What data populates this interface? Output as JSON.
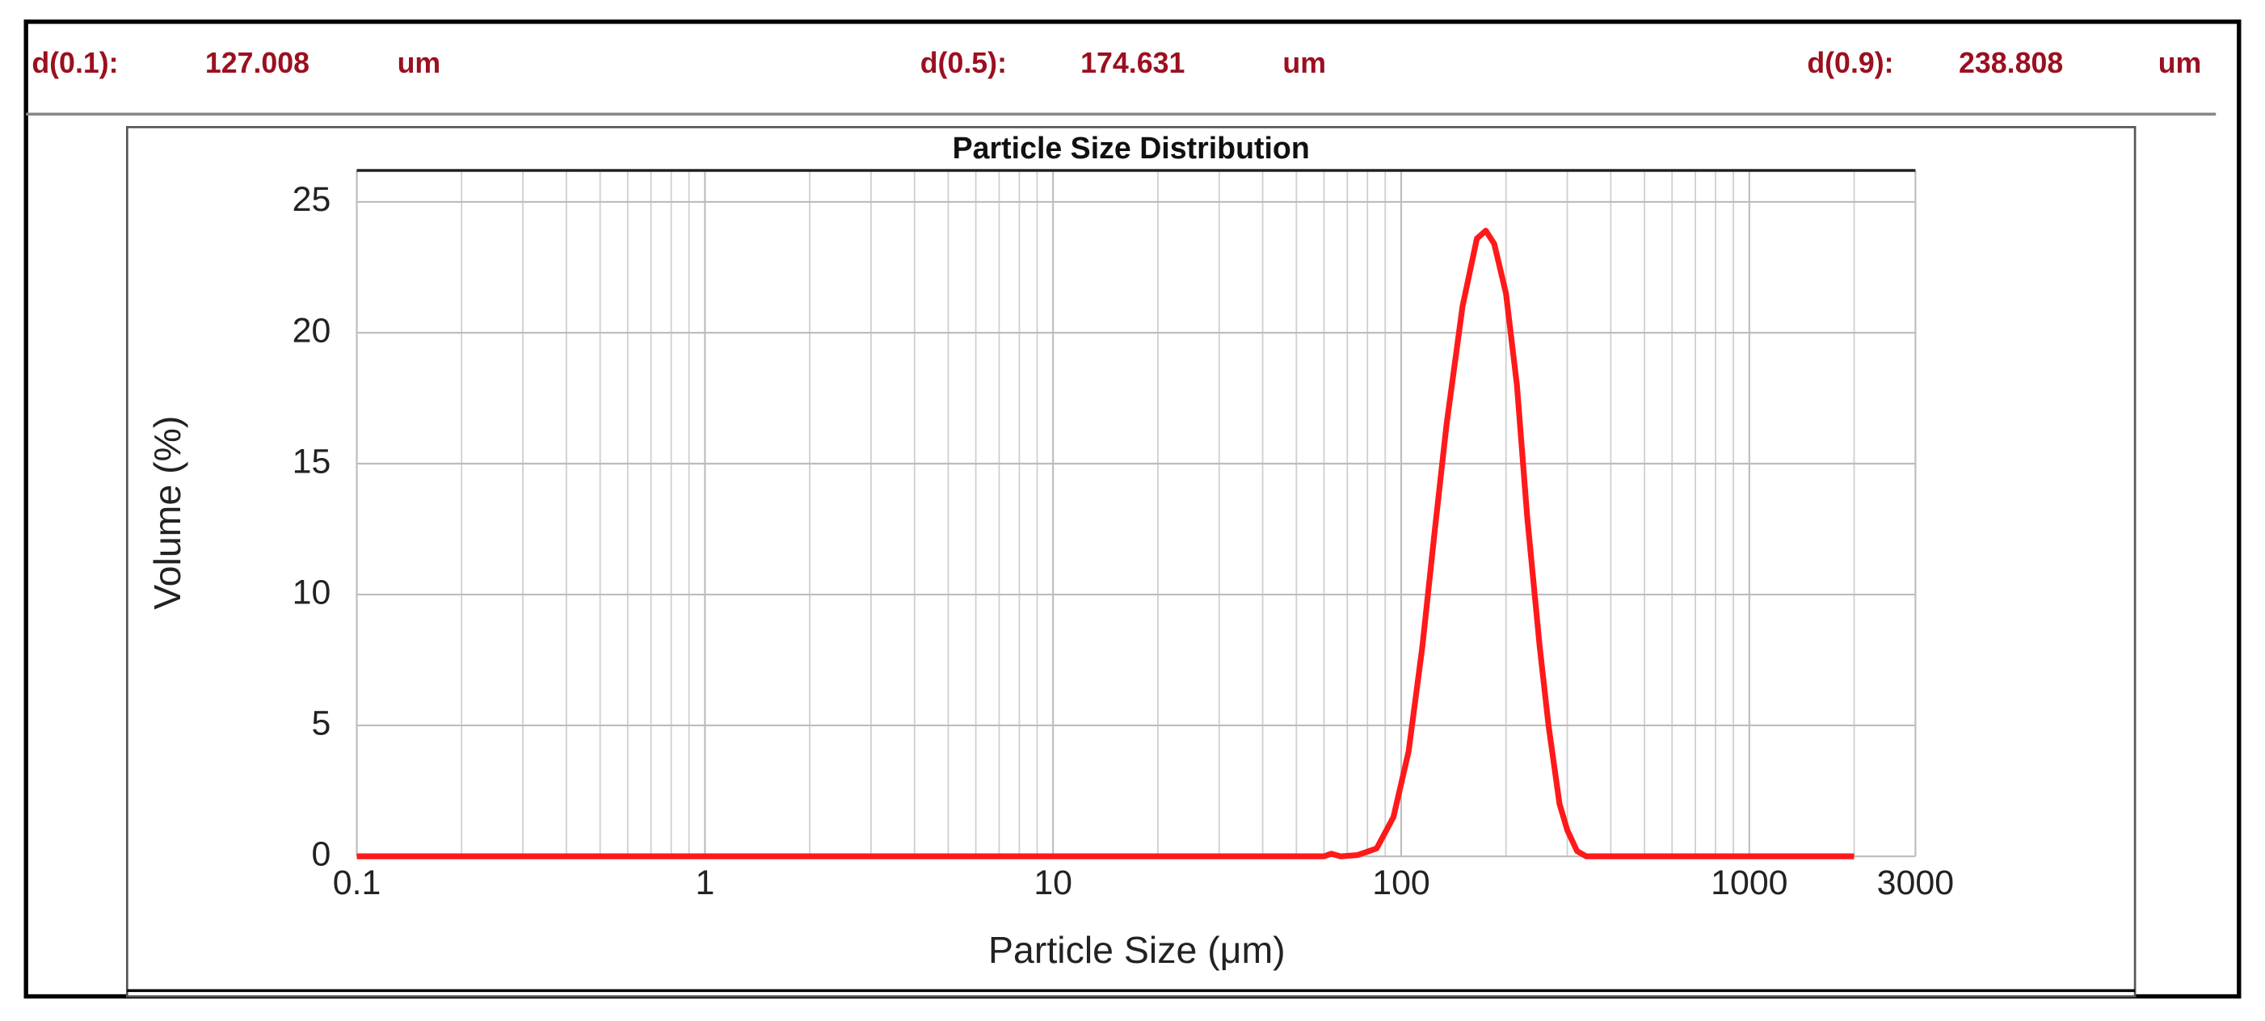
{
  "header": {
    "items": [
      {
        "label": "d(0.1):",
        "value": 127.008,
        "unit": "um"
      },
      {
        "label": "d(0.5):",
        "value": 174.631,
        "unit": "um"
      },
      {
        "label": "d(0.9):",
        "value": 238.808,
        "unit": "um"
      }
    ]
  },
  "chart_data": {
    "type": "line",
    "title": "Particle Size Distribution",
    "x_label": "Particle Size (μm)",
    "y_label": "Volume (%)",
    "xscale": "log",
    "grid": true,
    "color": "#ff1a1a",
    "xlim": [
      0.1,
      3000
    ],
    "xticks": [
      0.1,
      1,
      10,
      100,
      1000,
      3000
    ],
    "xgrid": [
      0.2,
      0.3,
      0.4,
      0.5,
      0.6,
      0.7,
      0.8,
      0.9,
      2,
      3,
      4,
      5,
      6,
      7,
      8,
      9,
      20,
      30,
      40,
      50,
      60,
      70,
      80,
      90,
      200,
      300,
      400,
      500,
      600,
      700,
      800,
      900,
      2000
    ],
    "ylim": [
      0,
      26.2
    ],
    "yticks": [
      0,
      5,
      10,
      15,
      20,
      25
    ],
    "x": [
      0.1,
      60,
      63,
      67,
      75,
      85,
      95,
      105,
      115,
      125,
      135,
      150,
      165,
      175,
      185,
      200,
      215,
      230,
      250,
      265,
      285,
      300,
      320,
      340,
      2000
    ],
    "values": [
      0,
      0,
      0.1,
      0,
      0.05,
      0.3,
      1.5,
      4,
      8,
      12.5,
      16.5,
      21,
      23.6,
      23.9,
      23.4,
      21.5,
      18,
      13,
      8,
      5,
      2,
      1,
      0.2,
      0,
      0
    ]
  }
}
